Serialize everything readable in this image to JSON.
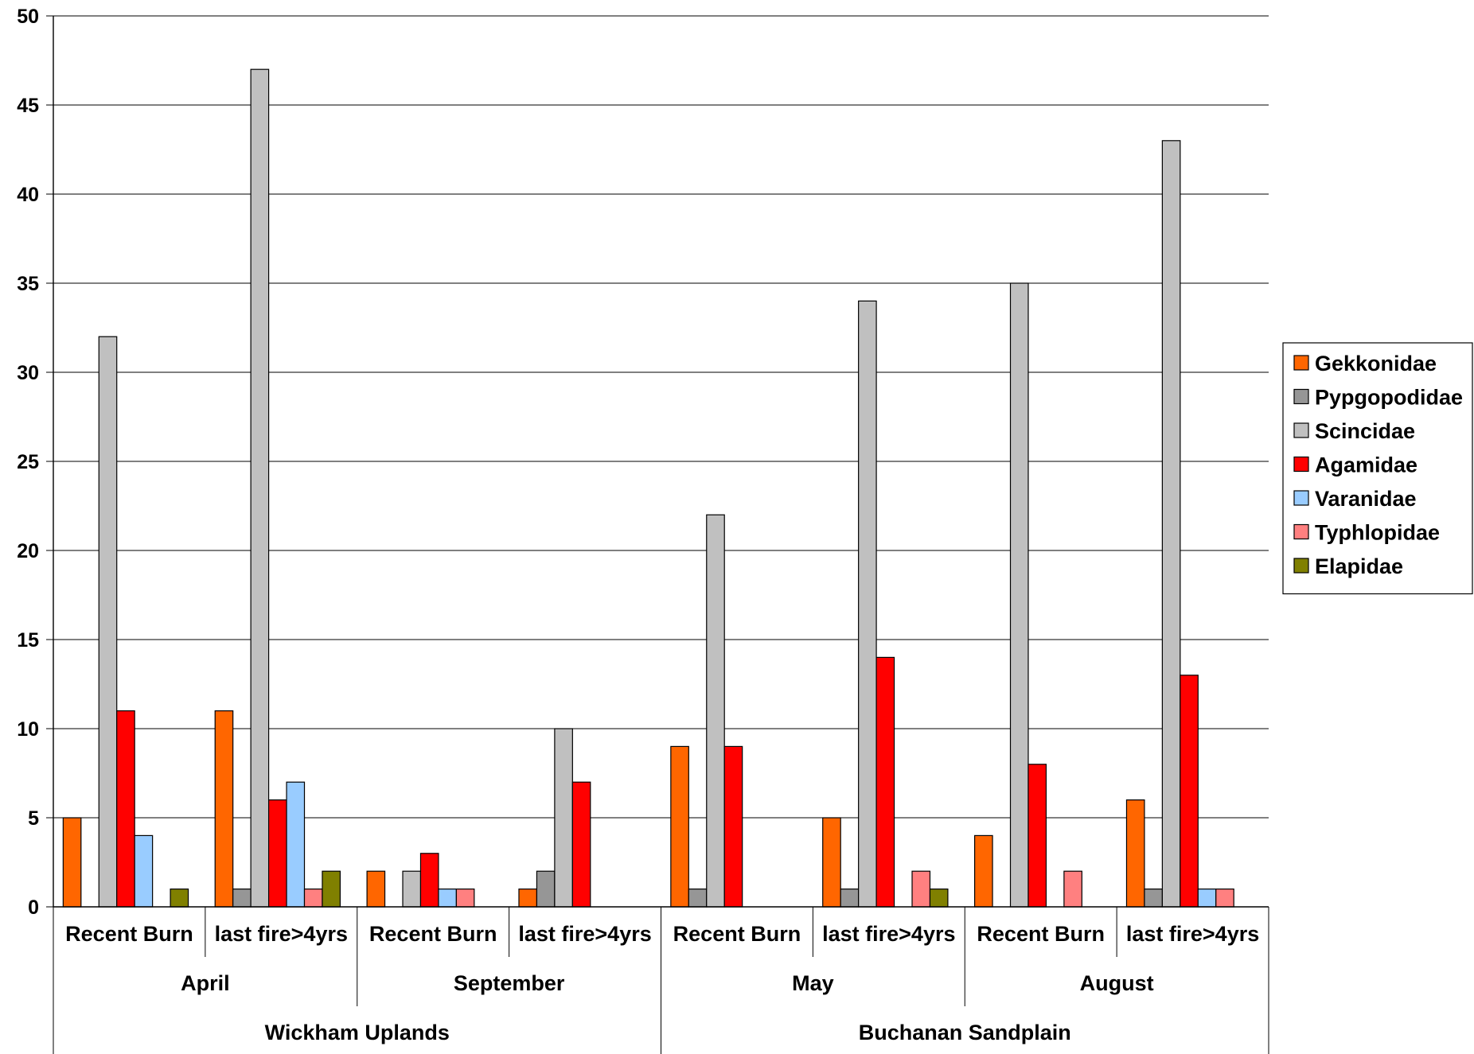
{
  "chart_data": {
    "type": "bar",
    "title": "",
    "xlabel": "",
    "ylabel": "",
    "ylim": [
      0,
      50
    ],
    "yticks": [
      "0",
      "5",
      "10",
      "15",
      "20",
      "25",
      "30",
      "35",
      "40",
      "45",
      "50"
    ],
    "grid": true,
    "legend_position": "right",
    "categories": [
      "Recent Burn",
      "last fire>4yrs",
      "Recent Burn",
      "last fire>4yrs",
      "Recent Burn",
      "last fire>4yrs",
      "Recent Burn",
      "last fire>4yrs"
    ],
    "months": [
      "April",
      "September",
      "May",
      "August"
    ],
    "sites": [
      "Wickham Uplands",
      "Buchanan Sandplain"
    ],
    "series": [
      {
        "name": "Gekkonidae",
        "color": "#FF6600",
        "values": [
          5,
          11,
          2,
          1,
          9,
          5,
          4,
          6
        ]
      },
      {
        "name": "Pypgopodidae",
        "color": "#969696",
        "values": [
          0,
          1,
          0,
          2,
          1,
          1,
          0,
          1
        ]
      },
      {
        "name": "Scincidae",
        "color": "#C0C0C0",
        "values": [
          32,
          47,
          2,
          10,
          22,
          34,
          35,
          43
        ]
      },
      {
        "name": "Agamidae",
        "color": "#FF0000",
        "values": [
          11,
          6,
          3,
          7,
          9,
          14,
          8,
          13
        ]
      },
      {
        "name": "Varanidae",
        "color": "#99CCFF",
        "values": [
          4,
          7,
          1,
          0,
          0,
          0,
          0,
          1
        ]
      },
      {
        "name": "Typhlopidae",
        "color": "#FF8080",
        "values": [
          0,
          1,
          1,
          0,
          0,
          2,
          2,
          1
        ]
      },
      {
        "name": "Elapidae",
        "color": "#808000",
        "values": [
          1,
          2,
          0,
          0,
          0,
          1,
          0,
          0
        ]
      }
    ]
  }
}
